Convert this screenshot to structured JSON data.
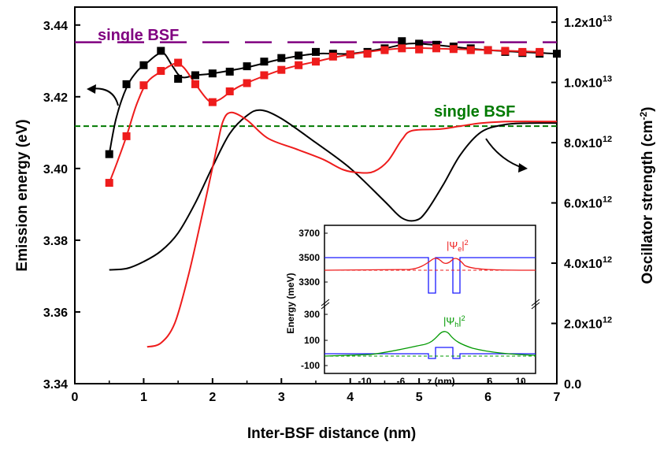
{
  "chart_data": {
    "type": "line",
    "xlabel": "Inter-BSF distance (nm)",
    "ylabel": "Emission energy (eV)",
    "y2label": "Oscillator strength (cm",
    "y2label_sup": "-2",
    "y2label_end": ")",
    "xlim": [
      0,
      7
    ],
    "ylim": [
      3.34,
      3.445
    ],
    "y2lim": [
      0.0,
      12500000000000.0
    ],
    "grid": false,
    "x_ticks": [
      {
        "v": 0,
        "label": "0"
      },
      {
        "v": 1,
        "label": "1"
      },
      {
        "v": 2,
        "label": "2"
      },
      {
        "v": 3,
        "label": "3"
      },
      {
        "v": 4,
        "label": "4"
      },
      {
        "v": 5,
        "label": "5"
      },
      {
        "v": 6,
        "label": "6"
      },
      {
        "v": 7,
        "label": "7"
      }
    ],
    "y_ticks": [
      {
        "v": 3.34,
        "label": "3.34"
      },
      {
        "v": 3.36,
        "label": "3.36"
      },
      {
        "v": 3.38,
        "label": "3.38"
      },
      {
        "v": 3.4,
        "label": "3.40"
      },
      {
        "v": 3.42,
        "label": "3.42"
      },
      {
        "v": 3.44,
        "label": "3.44"
      }
    ],
    "y2_ticks": [
      {
        "v": 0,
        "label": "0.0"
      },
      {
        "v": 2000000000000.0,
        "label": "2.0x10",
        "exp": "12"
      },
      {
        "v": 4000000000000.0,
        "label": "4.0x10",
        "exp": "12"
      },
      {
        "v": 6000000000000.0,
        "label": "6.0x10",
        "exp": "12"
      },
      {
        "v": 8000000000000.0,
        "label": "8.0x10",
        "exp": "12"
      },
      {
        "v": 10000000000000.0,
        "label": "1.0x10",
        "exp": "13"
      },
      {
        "v": 12000000000000.0,
        "label": "1.2x10",
        "exp": "13"
      }
    ],
    "reference_lines": [
      {
        "label": "single BSF",
        "axis": "left",
        "y": 3.4352,
        "color": "#800080",
        "style": "long-dash"
      },
      {
        "label": "single BSF",
        "axis": "left",
        "y": 3.4118,
        "color": "#007a00",
        "style": "short-dash"
      }
    ],
    "series": [
      {
        "axis": "left",
        "color": "#000000",
        "marker": "square",
        "points": [
          [
            0.5,
            3.404
          ],
          [
            0.75,
            3.4235
          ],
          [
            1.0,
            3.4288
          ],
          [
            1.25,
            3.4328
          ],
          [
            1.5,
            3.425
          ],
          [
            1.75,
            3.426
          ],
          [
            2.0,
            3.4265
          ],
          [
            2.25,
            3.427
          ],
          [
            2.5,
            3.4285
          ],
          [
            2.75,
            3.4298
          ],
          [
            3.0,
            3.4308
          ],
          [
            3.25,
            3.4315
          ],
          [
            3.5,
            3.4325
          ],
          [
            3.75,
            3.432
          ],
          [
            4.0,
            3.4318
          ],
          [
            4.25,
            3.4325
          ],
          [
            4.5,
            3.4335
          ],
          [
            4.75,
            3.4355
          ],
          [
            5.0,
            3.4348
          ],
          [
            5.25,
            3.4345
          ],
          [
            5.5,
            3.434
          ],
          [
            5.75,
            3.4335
          ],
          [
            6.0,
            3.433
          ],
          [
            6.25,
            3.4325
          ],
          [
            6.5,
            3.4322
          ],
          [
            6.75,
            3.432
          ],
          [
            7.0,
            3.432
          ]
        ],
        "curve": [
          [
            0.5,
            3.404
          ],
          [
            0.6,
            3.414
          ],
          [
            0.75,
            3.4225
          ],
          [
            0.9,
            3.427
          ],
          [
            1.05,
            3.4295
          ],
          [
            1.2,
            3.4318
          ],
          [
            1.3,
            3.432
          ],
          [
            1.42,
            3.4285
          ],
          [
            1.55,
            3.4255
          ],
          [
            1.75,
            3.426
          ],
          [
            2.0,
            3.4265
          ],
          [
            2.5,
            3.4282
          ],
          [
            3.0,
            3.4305
          ],
          [
            3.5,
            3.432
          ],
          [
            4.0,
            3.432
          ],
          [
            4.5,
            3.4335
          ],
          [
            4.85,
            3.4348
          ],
          [
            5.2,
            3.4345
          ],
          [
            6.0,
            3.433
          ],
          [
            7.0,
            3.432
          ]
        ]
      },
      {
        "axis": "left",
        "color": "#ee1c1c",
        "marker": "square",
        "points": [
          [
            0.5,
            3.396
          ],
          [
            0.75,
            3.409
          ],
          [
            1.0,
            3.4232
          ],
          [
            1.25,
            3.4272
          ],
          [
            1.5,
            3.4295
          ],
          [
            1.75,
            3.4235
          ],
          [
            2.0,
            3.4185
          ],
          [
            2.25,
            3.4215
          ],
          [
            2.5,
            3.4238
          ],
          [
            2.75,
            3.426
          ],
          [
            3.0,
            3.4275
          ],
          [
            3.25,
            3.4288
          ],
          [
            3.5,
            3.4298
          ],
          [
            3.75,
            3.4312
          ],
          [
            4.0,
            3.4318
          ],
          [
            4.25,
            3.432
          ],
          [
            4.5,
            3.433
          ],
          [
            4.75,
            3.4335
          ],
          [
            5.0,
            3.4332
          ],
          [
            5.25,
            3.4335
          ],
          [
            5.5,
            3.4333
          ],
          [
            5.75,
            3.433
          ],
          [
            6.0,
            3.433
          ],
          [
            6.25,
            3.4328
          ],
          [
            6.5,
            3.4325
          ],
          [
            6.75,
            3.4325
          ]
        ],
        "curve": [
          [
            0.5,
            3.396
          ],
          [
            0.62,
            3.402
          ],
          [
            0.75,
            3.409
          ],
          [
            0.9,
            3.418
          ],
          [
            1.05,
            3.424
          ],
          [
            1.25,
            3.427
          ],
          [
            1.45,
            3.4292
          ],
          [
            1.58,
            3.4282
          ],
          [
            1.75,
            3.4236
          ],
          [
            1.95,
            3.4188
          ],
          [
            2.1,
            3.4192
          ],
          [
            2.4,
            3.423
          ],
          [
            3.0,
            3.4275
          ],
          [
            3.5,
            3.4298
          ],
          [
            4.0,
            3.4318
          ],
          [
            4.75,
            3.4335
          ],
          [
            5.5,
            3.4333
          ],
          [
            6.75,
            3.4325
          ]
        ]
      },
      {
        "axis": "right",
        "color": "#000000",
        "marker": "none",
        "curve": [
          [
            0.5,
            3780000000000.0
          ],
          [
            0.75,
            3820000000000.0
          ],
          [
            1.0,
            4050000000000.0
          ],
          [
            1.25,
            4400000000000.0
          ],
          [
            1.5,
            5000000000000.0
          ],
          [
            1.75,
            6000000000000.0
          ],
          [
            2.0,
            7200000000000.0
          ],
          [
            2.25,
            8300000000000.0
          ],
          [
            2.5,
            8900000000000.0
          ],
          [
            2.7,
            9080000000000.0
          ],
          [
            3.0,
            8800000000000.0
          ],
          [
            3.5,
            8000000000000.0
          ],
          [
            4.0,
            7150000000000.0
          ],
          [
            4.5,
            6050000000000.0
          ],
          [
            4.75,
            5500000000000.0
          ],
          [
            4.95,
            5420000000000.0
          ],
          [
            5.1,
            5700000000000.0
          ],
          [
            5.35,
            6600000000000.0
          ],
          [
            5.6,
            7600000000000.0
          ],
          [
            5.9,
            8350000000000.0
          ],
          [
            6.25,
            8600000000000.0
          ],
          [
            6.6,
            8650000000000.0
          ],
          [
            7.0,
            8650000000000.0
          ]
        ]
      },
      {
        "axis": "right",
        "color": "#ee1c1c",
        "marker": "none",
        "curve": [
          [
            1.05,
            1220000000000.0
          ],
          [
            1.25,
            1350000000000.0
          ],
          [
            1.45,
            2000000000000.0
          ],
          [
            1.65,
            3600000000000.0
          ],
          [
            1.85,
            5600000000000.0
          ],
          [
            2.05,
            7700000000000.0
          ],
          [
            2.15,
            8700000000000.0
          ],
          [
            2.27,
            9000000000000.0
          ],
          [
            2.5,
            8750000000000.0
          ],
          [
            2.8,
            8150000000000.0
          ],
          [
            3.2,
            7800000000000.0
          ],
          [
            3.6,
            7450000000000.0
          ],
          [
            3.9,
            7100000000000.0
          ],
          [
            4.15,
            7000000000000.0
          ],
          [
            4.35,
            7050000000000.0
          ],
          [
            4.55,
            7400000000000.0
          ],
          [
            4.75,
            8100000000000.0
          ],
          [
            4.9,
            8400000000000.0
          ],
          [
            5.3,
            8450000000000.0
          ],
          [
            5.6,
            8550000000000.0
          ],
          [
            5.9,
            8650000000000.0
          ],
          [
            6.3,
            8700000000000.0
          ],
          [
            7.0,
            8700000000000.0
          ]
        ]
      }
    ],
    "annotations": [
      {
        "text": "single BSF",
        "color": "#800080"
      },
      {
        "text": "single BSF",
        "color": "#007a00"
      }
    ],
    "inset": {
      "type": "line",
      "xlabel": "z (nm)",
      "ylabel": "Energy (meV)",
      "x_ticks": [
        "-10",
        "-6",
        "6",
        "10"
      ],
      "y_ticks": [
        "3700",
        "3500",
        "3300",
        "300",
        "100",
        "-100"
      ],
      "label_e": "|Ψ",
      "label_e_sub": "e",
      "label_e_tail": "|",
      "label_e_sup": "2",
      "label_h": "|Ψ",
      "label_h_sub": "h",
      "label_h_tail": "|",
      "label_h_sup": "2",
      "colors": {
        "band": "#1a1aff",
        "electron": "#ee1c1c",
        "hole": "#009900"
      }
    }
  }
}
